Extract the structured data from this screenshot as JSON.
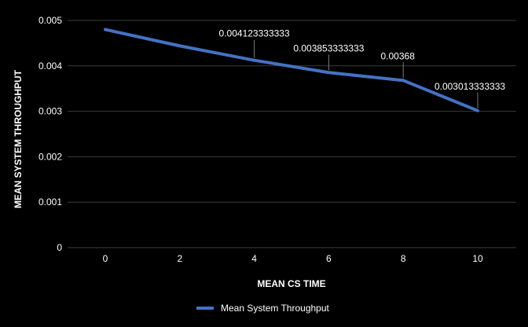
{
  "chart_data": {
    "type": "line",
    "title": "",
    "xlabel": "MEAN CS TIME",
    "ylabel": "MEAN SYSTEM THROUGHPUT",
    "x": [
      0,
      2,
      4,
      6,
      8,
      10
    ],
    "xticks": [
      "0",
      "2",
      "4",
      "6",
      "8",
      "10"
    ],
    "yticks": [
      "0",
      "0.001",
      "0.002",
      "0.003",
      "0.004",
      "0.005"
    ],
    "ylim": [
      0,
      0.005
    ],
    "grid": true,
    "legend_position": "bottom",
    "series": [
      {
        "name": "Mean System Throughput",
        "color": "#4472C4",
        "values": [
          0.0048,
          0.00444,
          0.004123333333,
          0.003853333333,
          0.00368,
          0.003013333333
        ],
        "labels": [
          "",
          "",
          "0.004123333333",
          "0.003853333333",
          "0.00368",
          "0.003013333333"
        ]
      }
    ]
  }
}
